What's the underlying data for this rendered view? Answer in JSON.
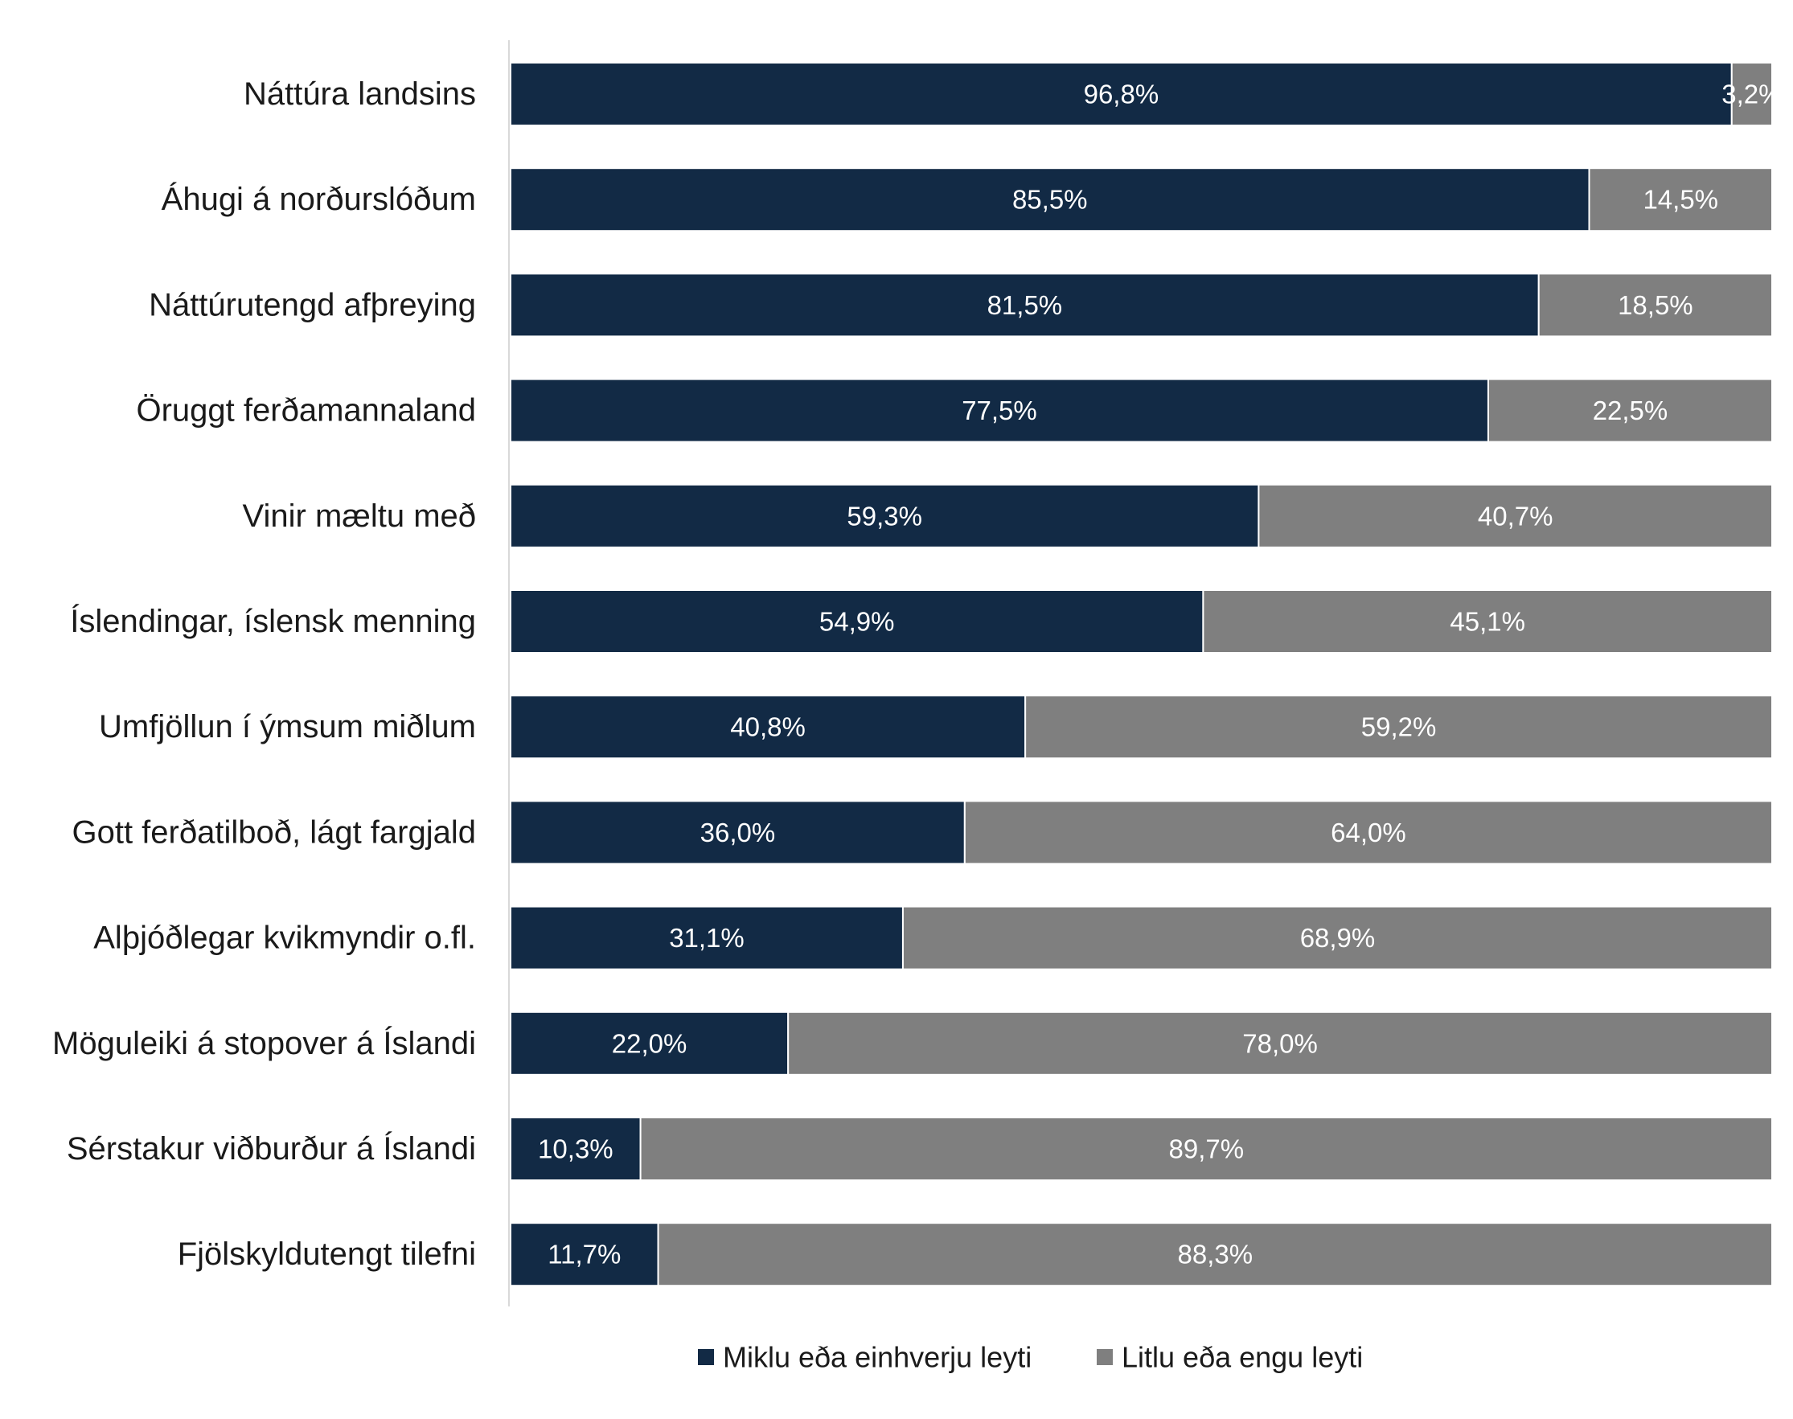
{
  "chart_data": {
    "type": "bar",
    "orientation": "horizontal",
    "stacked": true,
    "categories": [
      "Náttúra landsins",
      "Áhugi á norðurslóðum",
      "Náttúrutengd afþreying",
      "Öruggt ferðamannaland",
      "Vinir mæltu með",
      "Íslendingar, íslensk menning",
      "Umfjöllun í ýmsum miðlum",
      "Gott ferðatilboð, lágt fargjald",
      "Alþjóðlegar kvikmyndir o.fl.",
      "Möguleiki á stopover á Íslandi",
      "Sérstakur viðburður á Íslandi",
      "Fjölskyldutengt tilefni"
    ],
    "series": [
      {
        "name": "Miklu eða einhverju leyti",
        "color": "#122a45",
        "values": [
          96.8,
          85.5,
          81.5,
          77.5,
          59.3,
          54.9,
          40.8,
          36.0,
          31.1,
          22.0,
          10.3,
          11.7
        ],
        "labels": [
          "96,8%",
          "85,5%",
          "81,5%",
          "77,5%",
          "59,3%",
          "54,9%",
          "40,8%",
          "36,0%",
          "31,1%",
          "22,0%",
          "10,3%",
          "11,7%"
        ]
      },
      {
        "name": "Litlu eða engu leyti",
        "color": "#7f7f7f",
        "values": [
          3.2,
          14.5,
          18.5,
          22.5,
          40.7,
          45.1,
          59.2,
          64.0,
          68.9,
          78.0,
          89.7,
          88.3
        ],
        "labels": [
          "3,2%",
          "14,5%",
          "18,5%",
          "22,5%",
          "40,7%",
          "45,1%",
          "59,2%",
          "64,0%",
          "68,9%",
          "78,0%",
          "89,7%",
          "88,3%"
        ]
      }
    ],
    "xlim": [
      0,
      100
    ],
    "grid": false,
    "legend_position": "bottom"
  }
}
